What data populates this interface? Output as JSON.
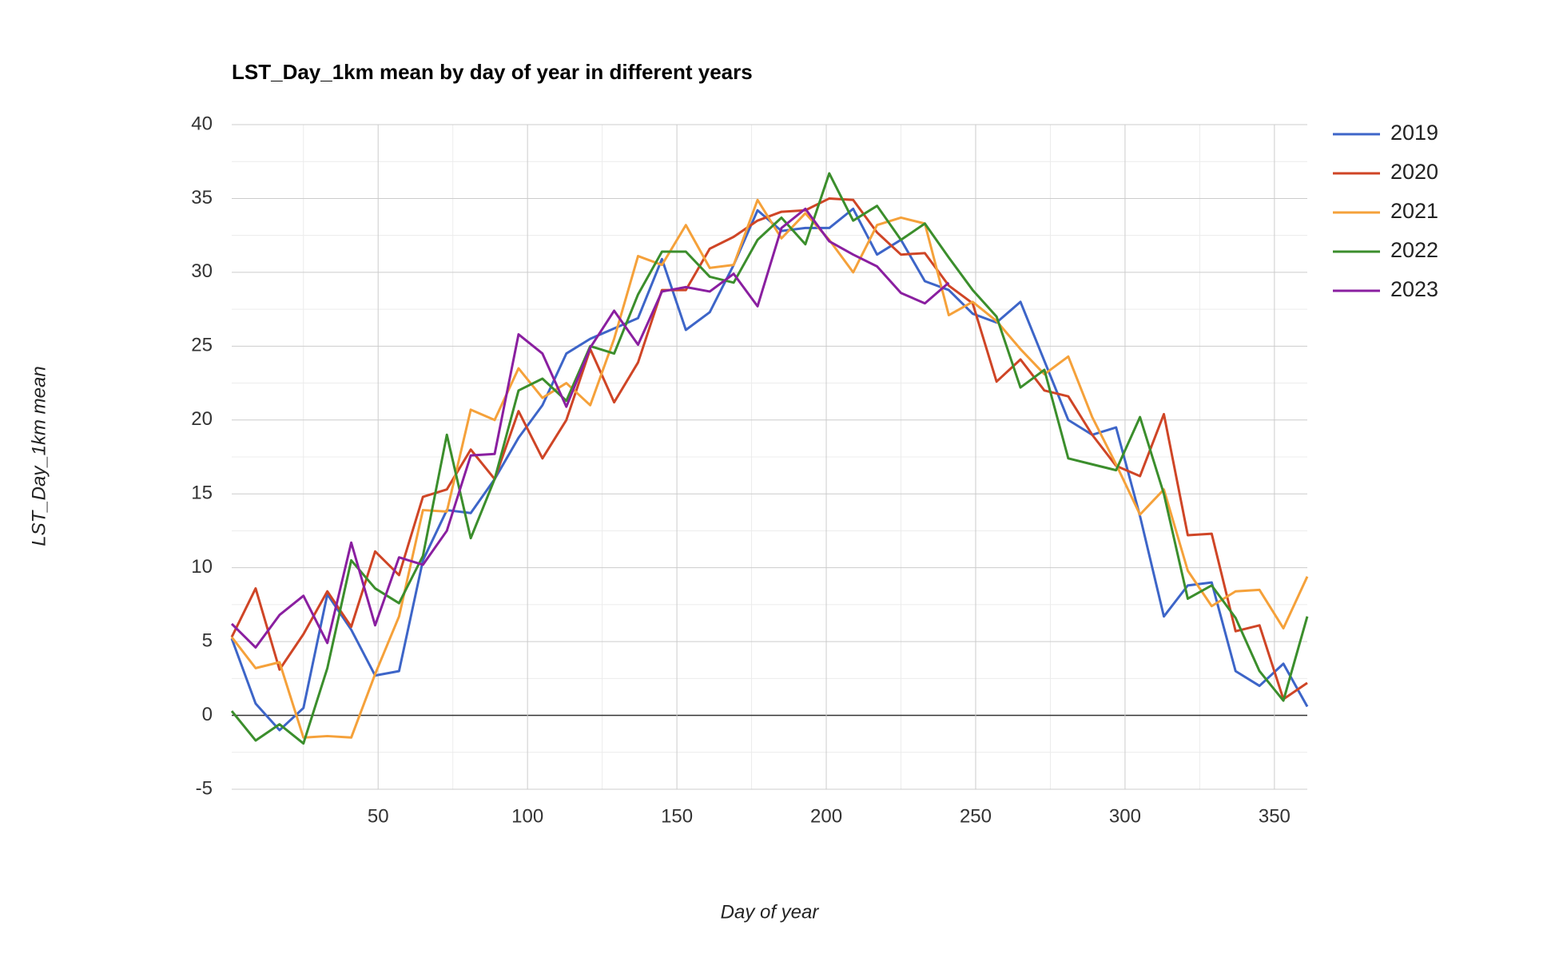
{
  "chart_data": {
    "type": "line",
    "title": "LST_Day_1km mean by day of year in different years",
    "xlabel": "Day of year",
    "ylabel": "LST_Day_1km mean",
    "x": [
      1,
      9,
      17,
      25,
      33,
      41,
      49,
      57,
      65,
      73,
      81,
      89,
      97,
      105,
      113,
      121,
      129,
      137,
      145,
      153,
      161,
      169,
      177,
      185,
      193,
      201,
      209,
      217,
      225,
      233,
      241,
      249,
      257,
      265,
      273,
      281,
      289,
      297,
      305,
      313,
      321,
      329,
      337,
      345,
      353,
      361
    ],
    "series": [
      {
        "name": "2019",
        "color": "#3d65c8",
        "values": [
          5.2,
          0.8,
          -1.0,
          0.5,
          8.2,
          5.8,
          2.7,
          3.0,
          10.5,
          13.9,
          13.7,
          16.0,
          18.8,
          21.0,
          24.5,
          25.5,
          26.2,
          26.9,
          30.9,
          26.1,
          27.3,
          30.5,
          34.2,
          32.8,
          33.0,
          33.0,
          34.3,
          31.2,
          32.2,
          29.4,
          28.8,
          27.2,
          26.6,
          28.0,
          24.0,
          20.0,
          19.0,
          19.5,
          13.5,
          6.7,
          8.8,
          9.0,
          3.0,
          2.0,
          3.5,
          0.6
        ]
      },
      {
        "name": "2020",
        "color": "#cf4526",
        "values": [
          5.3,
          8.6,
          3.1,
          5.5,
          8.4,
          6.0,
          11.1,
          9.5,
          14.8,
          15.3,
          18.0,
          16.0,
          20.6,
          17.4,
          20.0,
          24.8,
          21.2,
          23.9,
          28.8,
          28.8,
          31.6,
          32.4,
          33.5,
          34.1,
          34.2,
          35.0,
          34.9,
          32.7,
          31.2,
          31.3,
          29.1,
          27.9,
          22.6,
          24.1,
          22.0,
          21.6,
          19.0,
          16.9,
          16.2,
          20.4,
          12.2,
          12.3,
          5.7,
          6.1,
          1.1,
          2.2
        ]
      },
      {
        "name": "2021",
        "color": "#f5a13a",
        "values": [
          5.3,
          3.2,
          3.6,
          -1.5,
          -1.4,
          -1.5,
          2.8,
          6.7,
          13.9,
          13.8,
          20.7,
          20.0,
          23.5,
          21.5,
          22.5,
          21.0,
          25.5,
          31.1,
          30.5,
          33.2,
          30.3,
          30.5,
          34.9,
          32.3,
          34.0,
          32.2,
          30.0,
          33.2,
          33.7,
          33.3,
          27.1,
          28.0,
          26.7,
          24.8,
          23.1,
          24.3,
          20.2,
          17.0,
          13.6,
          15.3,
          9.8,
          7.4,
          8.4,
          8.5,
          5.9,
          9.4
        ]
      },
      {
        "name": "2022",
        "color": "#3b8e2c",
        "values": [
          0.3,
          -1.7,
          -0.6,
          -1.9,
          3.2,
          10.5,
          8.6,
          7.6,
          10.8,
          19.0,
          12.0,
          16.0,
          22.0,
          22.8,
          21.3,
          25.0,
          24.5,
          28.5,
          31.4,
          31.4,
          29.7,
          29.3,
          32.2,
          33.7,
          31.9,
          36.7,
          33.5,
          34.5,
          32.2,
          33.3,
          31.0,
          28.8,
          27.0,
          22.2,
          23.4,
          17.4,
          17.0,
          16.6,
          20.2,
          15.0,
          7.9,
          8.8,
          6.6,
          3.0,
          1.0,
          6.7
        ]
      },
      {
        "name": "2023",
        "color": "#8a1fa0",
        "values": [
          6.2,
          4.6,
          6.8,
          8.1,
          4.9,
          11.7,
          6.1,
          10.7,
          10.2,
          12.5,
          17.6,
          17.7,
          25.8,
          24.5,
          20.9,
          24.9,
          27.4,
          25.1,
          28.7,
          29.0,
          28.7,
          29.9,
          27.7,
          33.0,
          34.3,
          32.1,
          31.2,
          30.4,
          28.6,
          27.9,
          29.3,
          null,
          null,
          null,
          null,
          null,
          null,
          null,
          null,
          null,
          null,
          null,
          null,
          null,
          null,
          null
        ]
      }
    ],
    "xlim": [
      1,
      361
    ],
    "ylim": [
      -5,
      40
    ],
    "xticks": [
      50,
      100,
      150,
      200,
      250,
      300,
      350
    ],
    "yticks": [
      -5,
      0,
      5,
      10,
      15,
      20,
      25,
      30,
      35,
      40
    ],
    "grid": true,
    "legend": "right"
  }
}
